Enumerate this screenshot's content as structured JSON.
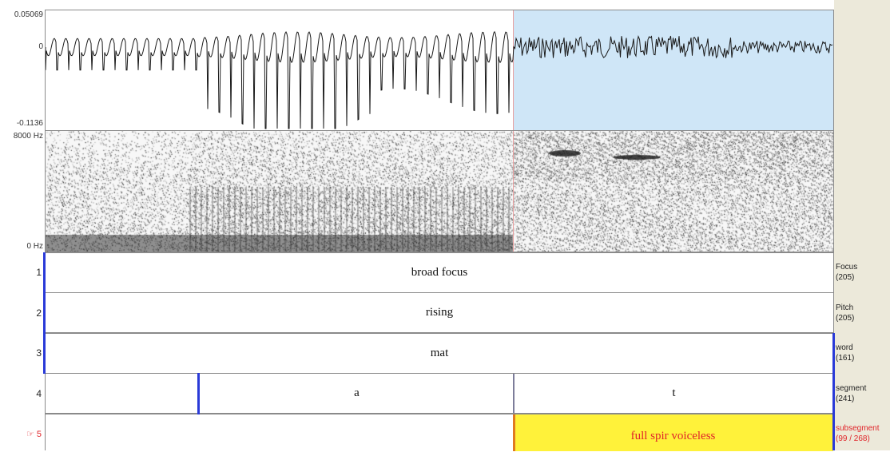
{
  "waveform": {
    "max_label": "0.05069",
    "zero_label": "0",
    "min_label": "-0.1136"
  },
  "spectrogram": {
    "top_label": "8000 Hz",
    "bottom_label": "0 Hz"
  },
  "tiers": [
    {
      "number": "1",
      "name": "Focus",
      "count": "(205)",
      "intervals": [
        "broad focus"
      ]
    },
    {
      "number": "2",
      "name": "Pitch",
      "count": "(205)",
      "intervals": [
        "rising"
      ]
    },
    {
      "number": "3",
      "name": "word",
      "count": "(161)",
      "intervals": [
        "mat"
      ]
    },
    {
      "number": "4",
      "name": "segment",
      "count": "(241)",
      "intervals": [
        "",
        "a",
        "t"
      ]
    },
    {
      "number": "5",
      "marker": "☞",
      "name": "subsegment",
      "count": "(99 / 268)",
      "intervals": [
        "",
        "full spir voiceless"
      ]
    }
  ],
  "colors": {
    "selection": "#cfe6f7",
    "highlight_interval": "#fff23a",
    "boundary": "#2a3ad8",
    "active_tier_text": "#e0242a",
    "gutter": "#ece9da"
  }
}
